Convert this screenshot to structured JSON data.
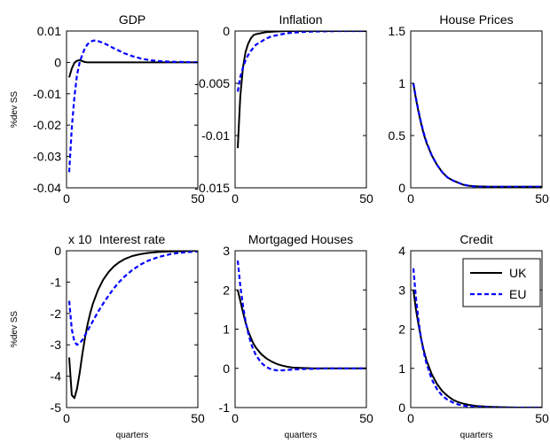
{
  "figure": {
    "legend": {
      "items": [
        "UK",
        "EU"
      ],
      "placement": "top-right of Credit panel"
    },
    "colors": {
      "UK": "#000000",
      "EU": "#0000ff"
    }
  },
  "chart_data": [
    {
      "type": "line",
      "title": "GDP",
      "ylabel": "%dev SS",
      "xlabel": "",
      "xlim": [
        0,
        50
      ],
      "ylim": [
        -0.04,
        0.01
      ],
      "xticks": [
        "0",
        "50"
      ],
      "yticks": [
        "0.01",
        "0",
        "-0.01",
        "-0.02",
        "-0.03",
        "-0.04"
      ],
      "grid": false,
      "tick_multiplier": "",
      "series": [
        {
          "name": "UK",
          "x": [
            1,
            2,
            3,
            4,
            5,
            6,
            7,
            8,
            10,
            15,
            20,
            30,
            40,
            50
          ],
          "y": [
            -0.0048,
            -0.002,
            -0.0001,
            0.0005,
            0.0007,
            0.0004,
            0.0001,
            0,
            0,
            0,
            0,
            0,
            0,
            0
          ]
        },
        {
          "name": "EU",
          "x": [
            1,
            2,
            3,
            4,
            5,
            6,
            7,
            8,
            9,
            10,
            11,
            12,
            14,
            16,
            18,
            20,
            22,
            25,
            28,
            31,
            34,
            37,
            40,
            45,
            50
          ],
          "y": [
            -0.035,
            -0.021,
            -0.011,
            -0.004,
            0.0,
            0.0025,
            0.0045,
            0.0058,
            0.0065,
            0.0069,
            0.007,
            0.0068,
            0.0062,
            0.0054,
            0.0045,
            0.0037,
            0.0029,
            0.002,
            0.0013,
            0.0008,
            0.0005,
            0.0003,
            0.0002,
            0.0001,
            0.0
          ]
        }
      ]
    },
    {
      "type": "line",
      "title": "Inflation",
      "ylabel": "",
      "xlabel": "",
      "xlim": [
        0,
        50
      ],
      "ylim": [
        -0.015,
        0
      ],
      "xticks": [
        "0",
        "50"
      ],
      "yticks": [
        "0",
        "-0.005",
        "-0.01",
        "-0.015"
      ],
      "grid": false,
      "tick_multiplier": "",
      "series": [
        {
          "name": "UK",
          "x": [
            1,
            2,
            3,
            4,
            5,
            6,
            7,
            8,
            10,
            12,
            15,
            20,
            30,
            50
          ],
          "y": [
            -0.0112,
            -0.0062,
            -0.0035,
            -0.002,
            -0.0012,
            -0.0007,
            -0.0004,
            -0.0003,
            -0.0002,
            -0.0001,
            -5e-05,
            0,
            0,
            0
          ]
        },
        {
          "name": "EU",
          "x": [
            1,
            2,
            3,
            4,
            5,
            6,
            7,
            8,
            10,
            12,
            14,
            16,
            18,
            20,
            25,
            30,
            40,
            50
          ],
          "y": [
            -0.0058,
            -0.0044,
            -0.0035,
            -0.0028,
            -0.0023,
            -0.0019,
            -0.0016,
            -0.0013,
            -0.001,
            -0.0007,
            -0.0005,
            -0.0004,
            -0.0003,
            -0.0002,
            -0.0001,
            -5e-05,
            0,
            0
          ]
        }
      ]
    },
    {
      "type": "line",
      "title": "House Prices",
      "ylabel": "",
      "xlabel": "",
      "xlim": [
        0,
        50
      ],
      "ylim": [
        0,
        1.5
      ],
      "xticks": [
        "0",
        "50"
      ],
      "yticks": [
        "1.5",
        "1",
        "0.5",
        "0"
      ],
      "grid": false,
      "tick_multiplier": "",
      "series": [
        {
          "name": "UK",
          "x": [
            1,
            2,
            3,
            4,
            5,
            6,
            8,
            10,
            12,
            14,
            16,
            18,
            20,
            22,
            25,
            30,
            35,
            40,
            50
          ],
          "y": [
            1.0,
            0.85,
            0.72,
            0.61,
            0.51,
            0.43,
            0.31,
            0.22,
            0.15,
            0.1,
            0.07,
            0.05,
            0.03,
            0.02,
            0.015,
            0.01,
            0.01,
            0.01,
            0.01
          ]
        },
        {
          "name": "EU",
          "x": [
            1,
            2,
            3,
            4,
            5,
            6,
            8,
            10,
            12,
            14,
            16,
            18,
            20,
            22,
            25,
            30,
            35,
            40,
            50
          ],
          "y": [
            1.0,
            0.86,
            0.73,
            0.62,
            0.52,
            0.44,
            0.31,
            0.22,
            0.15,
            0.1,
            0.07,
            0.05,
            0.03,
            0.02,
            0.01,
            0.01,
            0.01,
            0.01,
            0.01
          ]
        }
      ]
    },
    {
      "type": "line",
      "title": "Interest rate",
      "ylabel": "%dev SS",
      "xlabel": "quarters",
      "xlim": [
        0,
        50
      ],
      "ylim": [
        -5,
        0
      ],
      "xticks": [
        "0",
        "50"
      ],
      "yticks": [
        "0",
        "-1",
        "-2",
        "-3",
        "-4",
        "-5"
      ],
      "grid": false,
      "tick_multiplier": "x 10",
      "series": [
        {
          "name": "UK",
          "x": [
            1,
            2,
            3,
            4,
            5,
            6,
            7,
            8,
            9,
            10,
            12,
            14,
            16,
            18,
            20,
            22,
            25,
            28,
            31,
            35,
            40,
            45,
            50
          ],
          "y": [
            -3.4,
            -4.6,
            -4.7,
            -4.4,
            -3.9,
            -3.3,
            -2.8,
            -2.35,
            -2.0,
            -1.7,
            -1.25,
            -0.92,
            -0.68,
            -0.5,
            -0.37,
            -0.27,
            -0.17,
            -0.11,
            -0.07,
            -0.04,
            -0.02,
            -0.01,
            0
          ]
        },
        {
          "name": "EU",
          "x": [
            1,
            2,
            3,
            4,
            5,
            6,
            7,
            8,
            9,
            10,
            12,
            14,
            16,
            18,
            20,
            22,
            25,
            28,
            31,
            35,
            40,
            45,
            50
          ],
          "y": [
            -1.6,
            -2.5,
            -2.9,
            -3.0,
            -2.95,
            -2.85,
            -2.7,
            -2.55,
            -2.4,
            -2.25,
            -1.95,
            -1.68,
            -1.43,
            -1.2,
            -1.0,
            -0.83,
            -0.62,
            -0.45,
            -0.32,
            -0.2,
            -0.1,
            -0.05,
            -0.02
          ]
        }
      ]
    },
    {
      "type": "line",
      "title": "Mortgaged Houses",
      "ylabel": "",
      "xlabel": "quarters",
      "xlim": [
        0,
        50
      ],
      "ylim": [
        -1,
        3
      ],
      "xticks": [
        "0",
        "50"
      ],
      "yticks": [
        "3",
        "2",
        "1",
        "0",
        "-1"
      ],
      "grid": false,
      "tick_multiplier": "",
      "series": [
        {
          "name": "UK",
          "x": [
            1,
            2,
            3,
            4,
            5,
            6,
            7,
            8,
            10,
            12,
            14,
            16,
            18,
            20,
            22,
            25,
            30,
            35,
            40,
            50
          ],
          "y": [
            2.0,
            1.72,
            1.43,
            1.17,
            0.95,
            0.78,
            0.63,
            0.52,
            0.36,
            0.25,
            0.17,
            0.11,
            0.07,
            0.04,
            0.02,
            0.01,
            0.0,
            0.0,
            0.0,
            0.0
          ]
        },
        {
          "name": "EU",
          "x": [
            1,
            2,
            3,
            4,
            5,
            6,
            7,
            8,
            10,
            12,
            14,
            16,
            18,
            20,
            22,
            25,
            30,
            35,
            40,
            50
          ],
          "y": [
            2.75,
            2.1,
            1.6,
            1.2,
            0.9,
            0.65,
            0.47,
            0.33,
            0.14,
            0.03,
            -0.03,
            -0.05,
            -0.05,
            -0.04,
            -0.03,
            -0.02,
            -0.01,
            0.0,
            0.0,
            0.0
          ]
        }
      ]
    },
    {
      "type": "line",
      "title": "Credit",
      "ylabel": "",
      "xlabel": "quarters",
      "xlim": [
        0,
        50
      ],
      "ylim": [
        0,
        4
      ],
      "xticks": [
        "0",
        "50"
      ],
      "yticks": [
        "4",
        "3",
        "2",
        "1",
        "0"
      ],
      "grid": false,
      "tick_multiplier": "",
      "series": [
        {
          "name": "UK",
          "x": [
            1,
            2,
            3,
            4,
            5,
            6,
            8,
            10,
            12,
            14,
            16,
            18,
            20,
            22,
            25,
            30,
            35,
            40,
            50
          ],
          "y": [
            3.0,
            2.5,
            2.1,
            1.75,
            1.45,
            1.2,
            0.85,
            0.6,
            0.42,
            0.3,
            0.2,
            0.14,
            0.1,
            0.07,
            0.04,
            0.02,
            0.01,
            0.0,
            0.0
          ]
        },
        {
          "name": "EU",
          "x": [
            1,
            2,
            3,
            4,
            5,
            6,
            8,
            10,
            12,
            14,
            16,
            18,
            20,
            22,
            25,
            30,
            35,
            40,
            50
          ],
          "y": [
            3.55,
            2.8,
            2.2,
            1.75,
            1.4,
            1.12,
            0.72,
            0.47,
            0.3,
            0.2,
            0.13,
            0.08,
            0.05,
            0.03,
            0.02,
            0.01,
            0.0,
            0.0,
            0.0
          ]
        }
      ]
    }
  ]
}
